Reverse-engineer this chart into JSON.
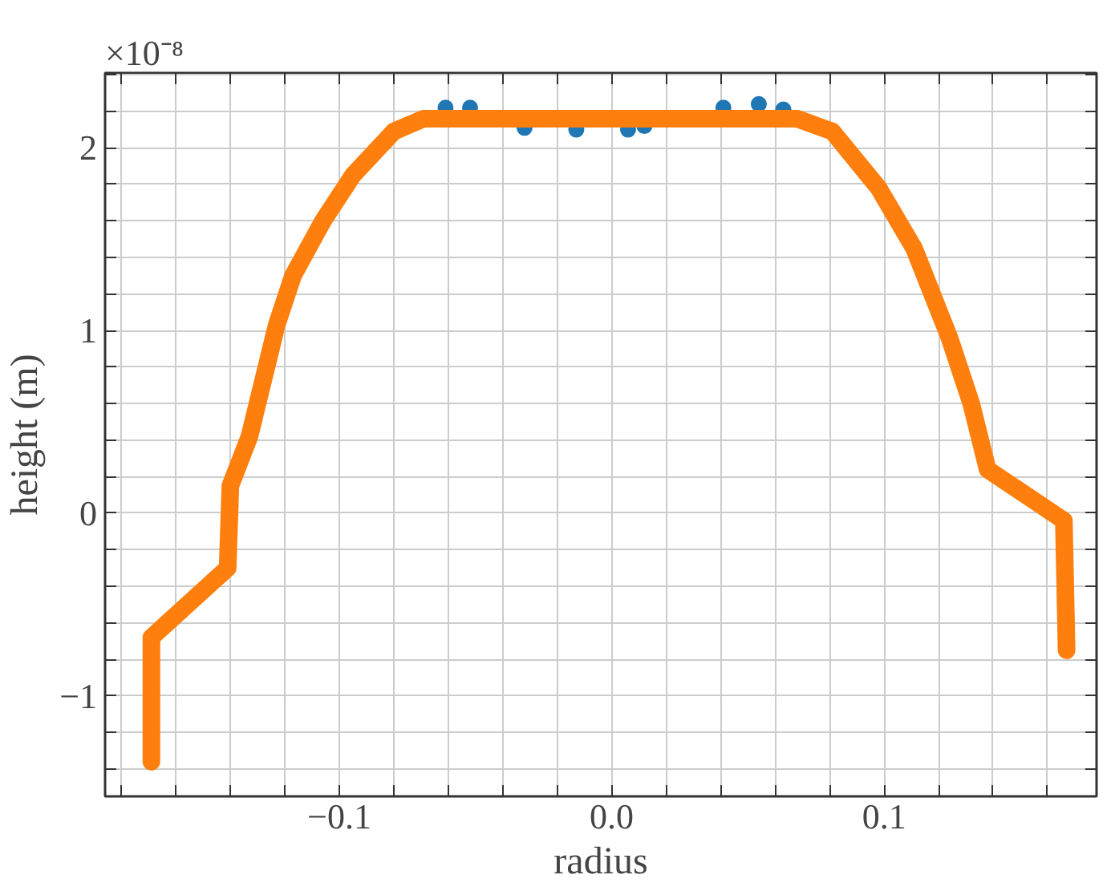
{
  "chart_data": {
    "type": "line",
    "xlabel": "radius",
    "ylabel": "height (m)",
    "annotations": [
      "×10⁻⁸"
    ],
    "xlim": [
      -0.186,
      0.178
    ],
    "ylim": [
      -1.55,
      2.41
    ],
    "xticks": [
      {
        "value": -0.18,
        "label": null
      },
      {
        "value": -0.16,
        "label": null
      },
      {
        "value": -0.14,
        "label": null
      },
      {
        "value": -0.12,
        "label": null
      },
      {
        "value": -0.1,
        "label": "−0.1"
      },
      {
        "value": -0.08,
        "label": null
      },
      {
        "value": -0.06,
        "label": null
      },
      {
        "value": -0.04,
        "label": null
      },
      {
        "value": -0.02,
        "label": null
      },
      {
        "value": 0.0,
        "label": "0.0"
      },
      {
        "value": 0.02,
        "label": null
      },
      {
        "value": 0.04,
        "label": null
      },
      {
        "value": 0.06,
        "label": null
      },
      {
        "value": 0.08,
        "label": null
      },
      {
        "value": 0.1,
        "label": "0.1"
      },
      {
        "value": 0.12,
        "label": null
      },
      {
        "value": 0.14,
        "label": null
      },
      {
        "value": 0.16,
        "label": null
      }
    ],
    "yticks": [
      {
        "value": -1.4,
        "label": null
      },
      {
        "value": -1.2,
        "label": null
      },
      {
        "value": -1,
        "label": "−1"
      },
      {
        "value": -0.8,
        "label": null
      },
      {
        "value": -0.6,
        "label": null
      },
      {
        "value": -0.4,
        "label": null
      },
      {
        "value": -0.2,
        "label": null
      },
      0,
      {
        "value": 0.2,
        "label": null
      },
      {
        "value": 0.4,
        "label": null
      },
      {
        "value": 0.6,
        "label": null
      },
      {
        "value": 0.8,
        "label": null
      },
      1,
      {
        "value": 1.2,
        "label": null
      },
      {
        "value": 1.4,
        "label": null
      },
      {
        "value": 1.6,
        "label": null
      },
      {
        "value": 1.8,
        "label": null
      },
      2,
      {
        "value": 2.2,
        "label": null
      },
      {
        "value": 2.4,
        "label": null
      }
    ],
    "grid": true,
    "series": [
      {
        "type": "scatter",
        "color": "#1f77b4",
        "x": [
          -0.061,
          -0.052,
          -0.032,
          -0.013,
          0.006,
          0.012,
          0.041,
          0.054,
          0.063
        ],
        "values": [
          2.22,
          2.22,
          2.11,
          2.1,
          2.1,
          2.12,
          2.22,
          2.24,
          2.21
        ]
      },
      {
        "color": "#ff7f0e",
        "x": [
          -0.169,
          -0.169,
          -0.141,
          -0.14,
          -0.133,
          -0.123,
          -0.117,
          -0.106,
          -0.095,
          -0.08,
          -0.069,
          0.068,
          0.081,
          0.098,
          0.111,
          0.124,
          0.132,
          0.138,
          0.166,
          0.167
        ],
        "values": [
          -1.36,
          -0.68,
          -0.3,
          0.15,
          0.42,
          1.03,
          1.3,
          1.6,
          1.85,
          2.09,
          2.16,
          2.16,
          2.09,
          1.78,
          1.45,
          0.96,
          0.6,
          0.24,
          -0.04,
          -0.75
        ]
      }
    ]
  }
}
